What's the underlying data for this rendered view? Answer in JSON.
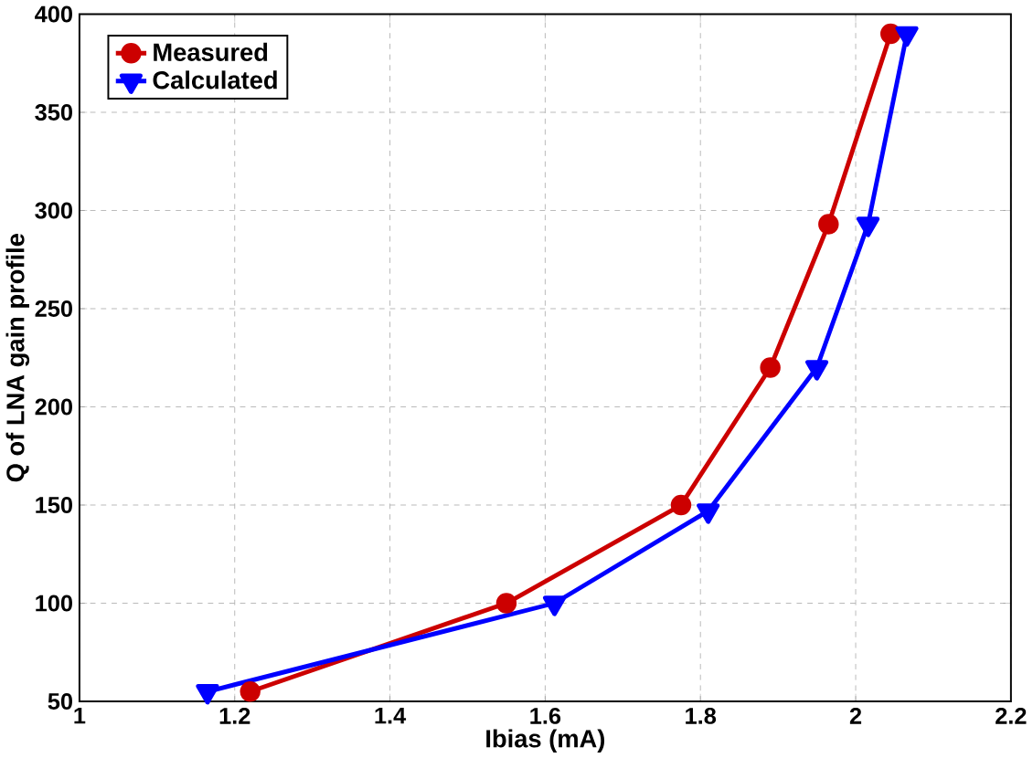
{
  "chart_data": {
    "type": "line",
    "xlabel": "Ibias (mA)",
    "ylabel": "Q of LNA gain profile",
    "xlim": [
      1,
      2.2
    ],
    "ylim": [
      50,
      400
    ],
    "xticks": [
      1,
      1.2,
      1.4,
      1.6,
      1.8,
      2,
      2.2
    ],
    "yticks": [
      50,
      100,
      150,
      200,
      250,
      300,
      350,
      400
    ],
    "grid": true,
    "legend": "top left",
    "series": [
      {
        "name": "Measured",
        "color": "#cc0000",
        "marker": "circle",
        "x": [
          1.22,
          1.55,
          1.775,
          1.89,
          1.965,
          2.045
        ],
        "values": [
          55,
          100,
          150,
          220,
          293,
          390
        ]
      },
      {
        "name": "Calculated",
        "color": "#0000ff",
        "marker": "triangle",
        "x": [
          1.165,
          1.612,
          1.81,
          1.95,
          2.016,
          2.066
        ],
        "values": [
          55,
          100,
          147,
          220,
          293,
          390
        ]
      }
    ]
  }
}
